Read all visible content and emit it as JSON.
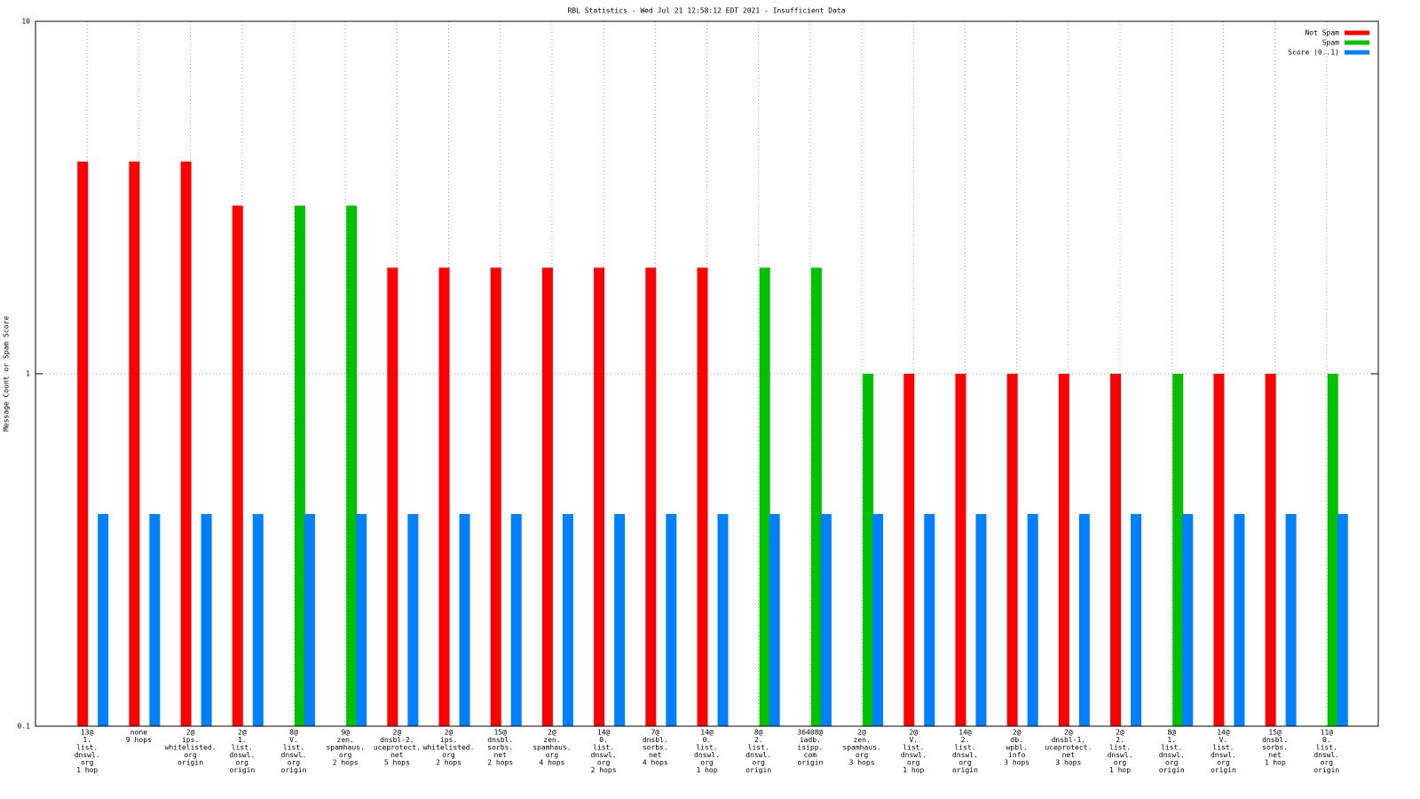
{
  "chart_data": {
    "type": "bar",
    "title": "RBL Statistics - Wed Jul 21 12:58:12 EDT 2021 - Insufficient Data",
    "y_label": "Message Count or Spam Score",
    "yscale": "log",
    "ylim": [
      0.1,
      10
    ],
    "yticks": [
      0.1,
      1,
      10
    ],
    "grid": true,
    "legend": "top-right",
    "categories": [
      [
        "13@",
        "1.",
        "list.",
        "dnswl.",
        "org",
        "1 hop"
      ],
      [
        "none",
        "9 hops"
      ],
      [
        "2@",
        "ips.",
        "whitelisted.",
        "org",
        "origin"
      ],
      [
        "2@",
        "1.",
        "list.",
        "dnswl.",
        "org",
        "origin"
      ],
      [
        "8@",
        "V.",
        "list.",
        "dnswl.",
        "org",
        "origin"
      ],
      [
        "9@",
        "zen.",
        "spamhaus.",
        "org",
        "2 hops"
      ],
      [
        "2@",
        "dnsbl-2.",
        "uceprotect.",
        "net",
        "5 hops"
      ],
      [
        "2@",
        "ips.",
        "whitelisted.",
        "org",
        "2 hops"
      ],
      [
        "15@",
        "dnsbl.",
        "sorbs.",
        "net",
        "2 hops"
      ],
      [
        "2@",
        "zen.",
        "spamhaus.",
        "org",
        "4 hops"
      ],
      [
        "14@",
        "0.",
        "list.",
        "dnswl.",
        "org",
        "2 hops"
      ],
      [
        "7@",
        "dnsbl.",
        "sorbs.",
        "net",
        "4 hops"
      ],
      [
        "14@",
        "0.",
        "list.",
        "dnswl.",
        "org",
        "1 hop"
      ],
      [
        "8@",
        "2.",
        "list.",
        "dnswl.",
        "org",
        "origin"
      ],
      [
        "36408@",
        "iadb.",
        "isipp.",
        "com",
        "origin"
      ],
      [
        "2@",
        "zen.",
        "spamhaus.",
        "org",
        "3 hops"
      ],
      [
        "2@",
        "V.",
        "list.",
        "dnswl.",
        "org",
        "1 hop"
      ],
      [
        "14@",
        "2.",
        "list.",
        "dnswl.",
        "org",
        "origin"
      ],
      [
        "2@",
        "db.",
        "wpbl.",
        "info",
        "3 hops"
      ],
      [
        "2@",
        "dnsbl-1.",
        "uceprotect.",
        "net",
        "3 hops"
      ],
      [
        "2@",
        "2.",
        "list.",
        "dnswl.",
        "org",
        "1 hop"
      ],
      [
        "8@",
        "1.",
        "list.",
        "dnswl.",
        "org",
        "origin"
      ],
      [
        "14@",
        "V.",
        "list.",
        "dnswl.",
        "org",
        "origin"
      ],
      [
        "15@",
        "dnsbl.",
        "sorbs.",
        "net",
        "1 hop"
      ],
      [
        "11@",
        "0.",
        "list.",
        "dnswl.",
        "org",
        "origin"
      ]
    ],
    "series": [
      {
        "name": "Not Spam",
        "color": "#ff0000",
        "values": [
          4,
          4,
          4,
          3,
          null,
          null,
          2,
          2,
          2,
          2,
          2,
          2,
          2,
          null,
          null,
          null,
          1,
          1,
          1,
          1,
          1,
          null,
          1,
          1,
          null
        ]
      },
      {
        "name": "Spam",
        "color": "#00c000",
        "values": [
          null,
          null,
          null,
          null,
          3,
          3,
          null,
          null,
          null,
          null,
          null,
          null,
          null,
          2,
          2,
          1,
          null,
          null,
          null,
          null,
          null,
          1,
          null,
          null,
          1
        ]
      },
      {
        "name": "Score (0..1)",
        "color": "#0080ff",
        "values": [
          0.4,
          0.4,
          0.4,
          0.4,
          0.4,
          0.4,
          0.4,
          0.4,
          0.4,
          0.4,
          0.4,
          0.4,
          0.4,
          0.4,
          0.4,
          0.4,
          0.4,
          0.4,
          0.4,
          0.4,
          0.4,
          0.4,
          0.4,
          0.4,
          0.4
        ]
      }
    ]
  }
}
